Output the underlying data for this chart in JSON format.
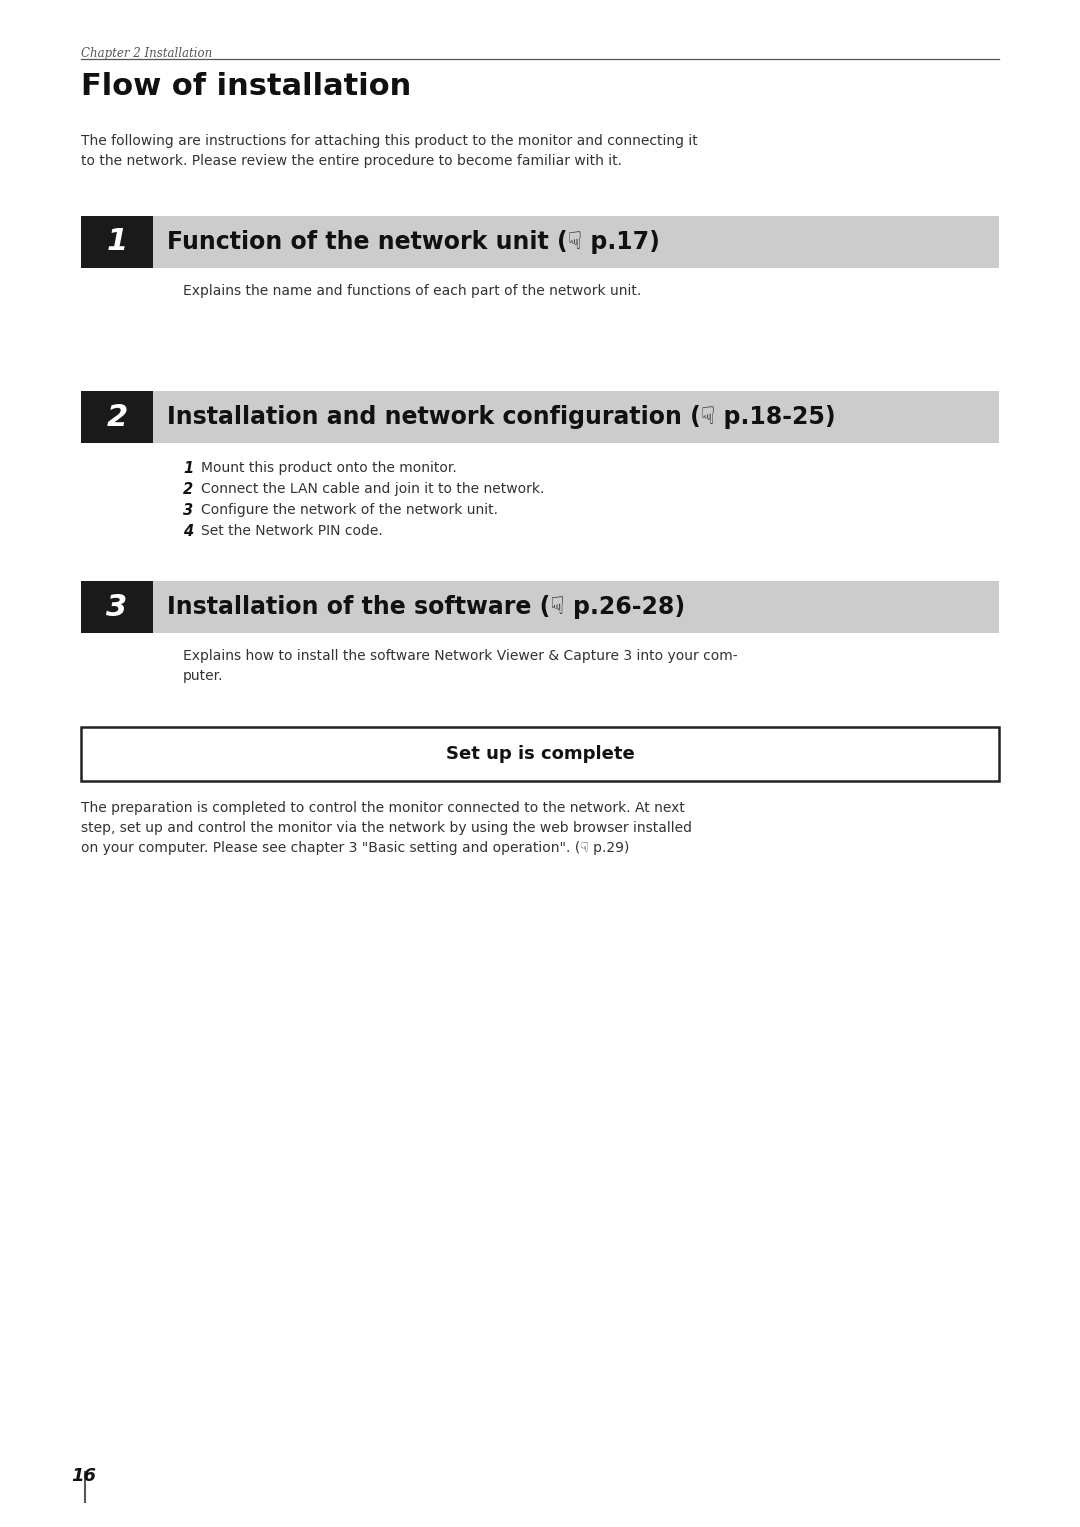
{
  "bg_color": "#ffffff",
  "chapter_label": "Chapter 2 Installation",
  "title": "Flow of installation",
  "intro_text": "The following are instructions for attaching this product to the monitor and connecting it\nto the network. Please review the entire procedure to become familiar with it.",
  "sections": [
    {
      "number": "1",
      "heading": "Function of the network unit (☟ p.17)",
      "body": "Explains the name and functions of each part of the network unit.",
      "sub_items": []
    },
    {
      "number": "2",
      "heading": "Installation and network configuration (☟ p.18-25)",
      "body": "",
      "sub_labels": [
        "1",
        "2",
        "3",
        "4"
      ],
      "sub_texts": [
        "Mount this product onto the monitor.",
        "Connect the LAN cable and join it to the network.",
        "Configure the network of the network unit.",
        "Set the Network PIN code."
      ]
    },
    {
      "number": "3",
      "heading": "Installation of the software (☟ p.26-28)",
      "body": "Explains how to install the software Network Viewer & Capture 3 into your com-\nputer.",
      "sub_items": []
    }
  ],
  "setup_box_text": "Set up is complete",
  "footer_text": "The preparation is completed to control the monitor connected to the network. At next\nstep, set up and control the monitor via the network by using the web browser installed\non your computer. Please see chapter 3 \"Basic setting and operation\". (☟ p.29)",
  "page_number": "16",
  "ml": 0.075,
  "mr": 0.925,
  "banner_color": "#cccccc",
  "num_box_color": "#1a1a1a",
  "num_text_color": "#ffffff",
  "text_color": "#333333",
  "title_color": "#111111",
  "border_color": "#222222",
  "chapter_color": "#555555",
  "page_num_color": "#111111",
  "line_color": "#555555"
}
